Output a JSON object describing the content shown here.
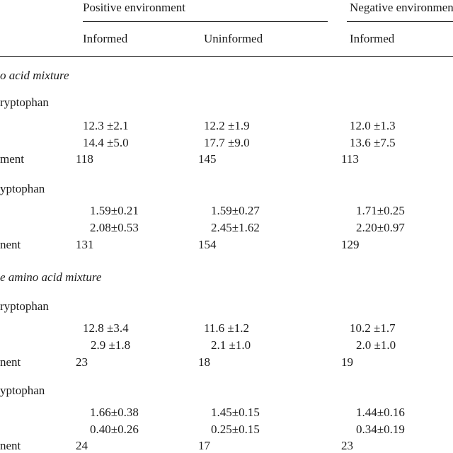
{
  "header": {
    "positive_environment": "Positive environment",
    "negative_environment": "Negative environment",
    "informed": "Informed",
    "uninformed": "Uninformed",
    "informed_neg": "Informed"
  },
  "sections": [
    {
      "title": "o acid mixture",
      "groups": [
        {
          "label": "ryptophan",
          "rows": [
            [
              "12.3  ±2.1",
              "12.2  ±1.9",
              "12.0  ±1.3"
            ],
            [
              "14.4  ±5.0",
              "17.7  ±9.0",
              "13.6  ±7.5"
            ]
          ],
          "n_label": "ment",
          "n": [
            "118",
            "145",
            "113"
          ]
        },
        {
          "label": "yptophan",
          "rows": [
            [
              "1.59±0.21",
              "1.59±0.27",
              "1.71±0.25"
            ],
            [
              "2.08±0.53",
              "2.45±1.62",
              "2.20±0.97"
            ]
          ],
          "n_label": "nent",
          "n": [
            "131",
            "154",
            "129"
          ]
        }
      ]
    },
    {
      "title": "e amino acid mixture",
      "groups": [
        {
          "label": "ryptophan",
          "rows": [
            [
              "12.8  ±3.4",
              "11.6  ±1.2",
              "10.2  ±1.7"
            ],
            [
              "2.9  ±1.8",
              "2.1  ±1.0",
              "2.0  ±1.0"
            ]
          ],
          "n_label": "nent",
          "n": [
            "23",
            "18",
            "19"
          ]
        },
        {
          "label": "yptophan",
          "rows": [
            [
              "1.66±0.38",
              "1.45±0.15",
              "1.44±0.16"
            ],
            [
              "0.40±0.26",
              "0.25±0.15",
              "0.34±0.19"
            ]
          ],
          "n_label": "nent",
          "n": [
            "24",
            "17",
            "23"
          ]
        }
      ]
    }
  ]
}
